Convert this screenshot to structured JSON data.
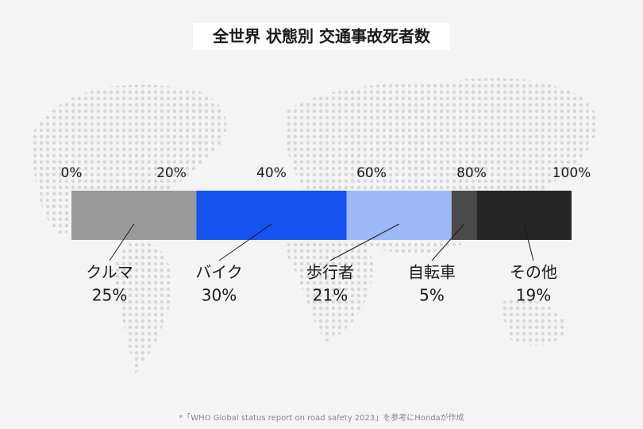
{
  "chart_data": {
    "type": "bar",
    "orientation": "horizontal",
    "stacked": true,
    "title": "全世界 状態別 交通事故死者数",
    "categories": [
      null
    ],
    "series": [
      {
        "name": "クルマ",
        "color": "#999999",
        "values": [
          25
        ],
        "value_labels": [
          "25%"
        ]
      },
      {
        "name": "バイク",
        "color": "#1652f0",
        "values": [
          30
        ],
        "value_labels": [
          "30%"
        ]
      },
      {
        "name": "歩行者",
        "color": "#9db9f8",
        "values": [
          21
        ],
        "value_labels": [
          "21%"
        ]
      },
      {
        "name": "自転車",
        "color": "#4a4a4a",
        "values": [
          5
        ],
        "value_labels": [
          "5%"
        ]
      },
      {
        "name": "その他",
        "color": "#262626",
        "values": [
          19
        ],
        "value_labels": [
          "19%"
        ]
      }
    ],
    "xlim": [
      0,
      100
    ],
    "xticks": [
      {
        "value": 0,
        "label": "0%"
      },
      {
        "value": 20,
        "label": "20%"
      },
      {
        "value": 40,
        "label": "40%"
      },
      {
        "value": 60,
        "label": "60%"
      },
      {
        "value": 80,
        "label": "80%"
      },
      {
        "value": 100,
        "label": "100%"
      }
    ],
    "note": "*「WHO Global status report on road safety 2023」を参考にHondaが作成"
  }
}
